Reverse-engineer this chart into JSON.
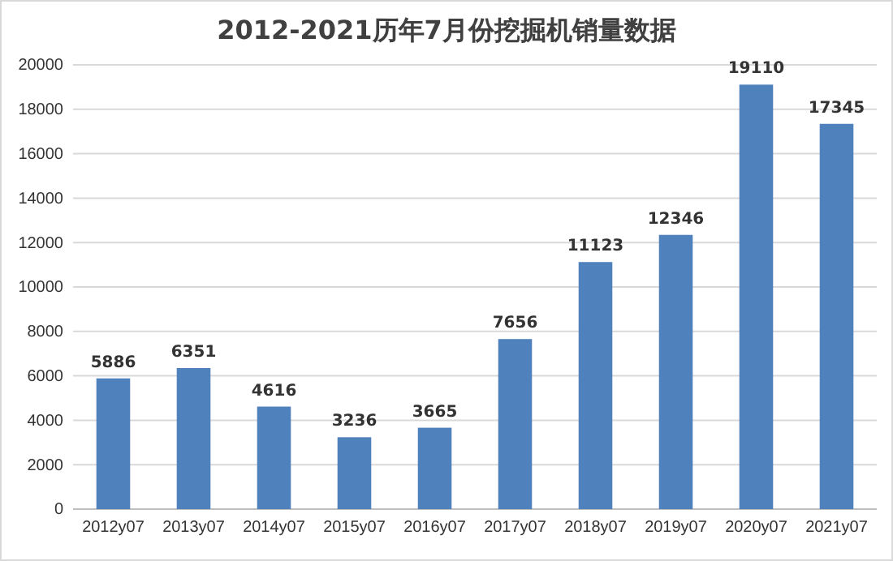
{
  "chart_data": {
    "type": "bar",
    "title": "2012-2021历年7月份挖掘机销量数据",
    "categories": [
      "2012y07",
      "2013y07",
      "2014y07",
      "2015y07",
      "2016y07",
      "2017y07",
      "2018y07",
      "2019y07",
      "2020y07",
      "2021y07"
    ],
    "values": [
      5886,
      6351,
      4616,
      3236,
      3665,
      7656,
      11123,
      12346,
      19110,
      17345
    ],
    "color": "#4f81bd",
    "ylim": [
      0,
      20000
    ],
    "yticks": [
      0,
      2000,
      4000,
      6000,
      8000,
      10000,
      12000,
      14000,
      16000,
      18000,
      20000
    ],
    "grid": "y",
    "data_labels": true
  }
}
